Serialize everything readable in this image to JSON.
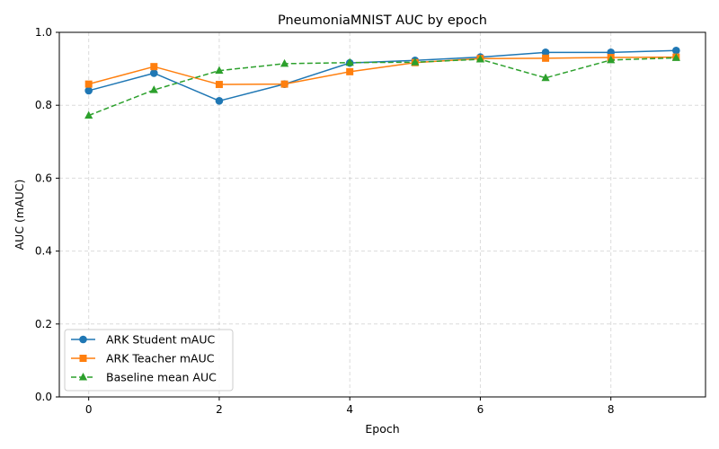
{
  "chart_data": {
    "type": "line",
    "title": "PneumoniaMNIST AUC by epoch",
    "xlabel": "Epoch",
    "ylabel": "AUC (mAUC)",
    "xlim": [
      -0.45,
      9.45
    ],
    "ylim": [
      0.0,
      1.0
    ],
    "xticks": [
      0,
      2,
      4,
      6,
      8
    ],
    "yticks": [
      0.0,
      0.2,
      0.4,
      0.6,
      0.8,
      1.0
    ],
    "xtick_labels": [
      "0",
      "2",
      "4",
      "6",
      "8"
    ],
    "ytick_labels": [
      "0.0",
      "0.2",
      "0.4",
      "0.6",
      "0.8",
      "1.0"
    ],
    "grid": true,
    "legend_position": "lower-left",
    "x": [
      0,
      1,
      2,
      3,
      4,
      5,
      6,
      7,
      8,
      9
    ],
    "series": [
      {
        "name": "ARK Student mAUC",
        "color": "#1f77b4",
        "marker": "circle",
        "linestyle": "solid",
        "values": [
          0.84,
          0.888,
          0.812,
          0.858,
          0.916,
          0.923,
          0.932,
          0.945,
          0.945,
          0.95
        ]
      },
      {
        "name": "ARK Teacher mAUC",
        "color": "#ff7f0e",
        "marker": "square",
        "linestyle": "solid",
        "values": [
          0.858,
          0.906,
          0.857,
          0.858,
          0.892,
          0.917,
          0.928,
          0.929,
          0.931,
          0.932
        ]
      },
      {
        "name": "Baseline mean AUC",
        "color": "#2ca02c",
        "marker": "triangle",
        "linestyle": "dashed",
        "values": [
          0.772,
          0.842,
          0.895,
          0.914,
          0.917,
          0.918,
          0.926,
          0.875,
          0.924,
          0.93
        ]
      }
    ]
  }
}
